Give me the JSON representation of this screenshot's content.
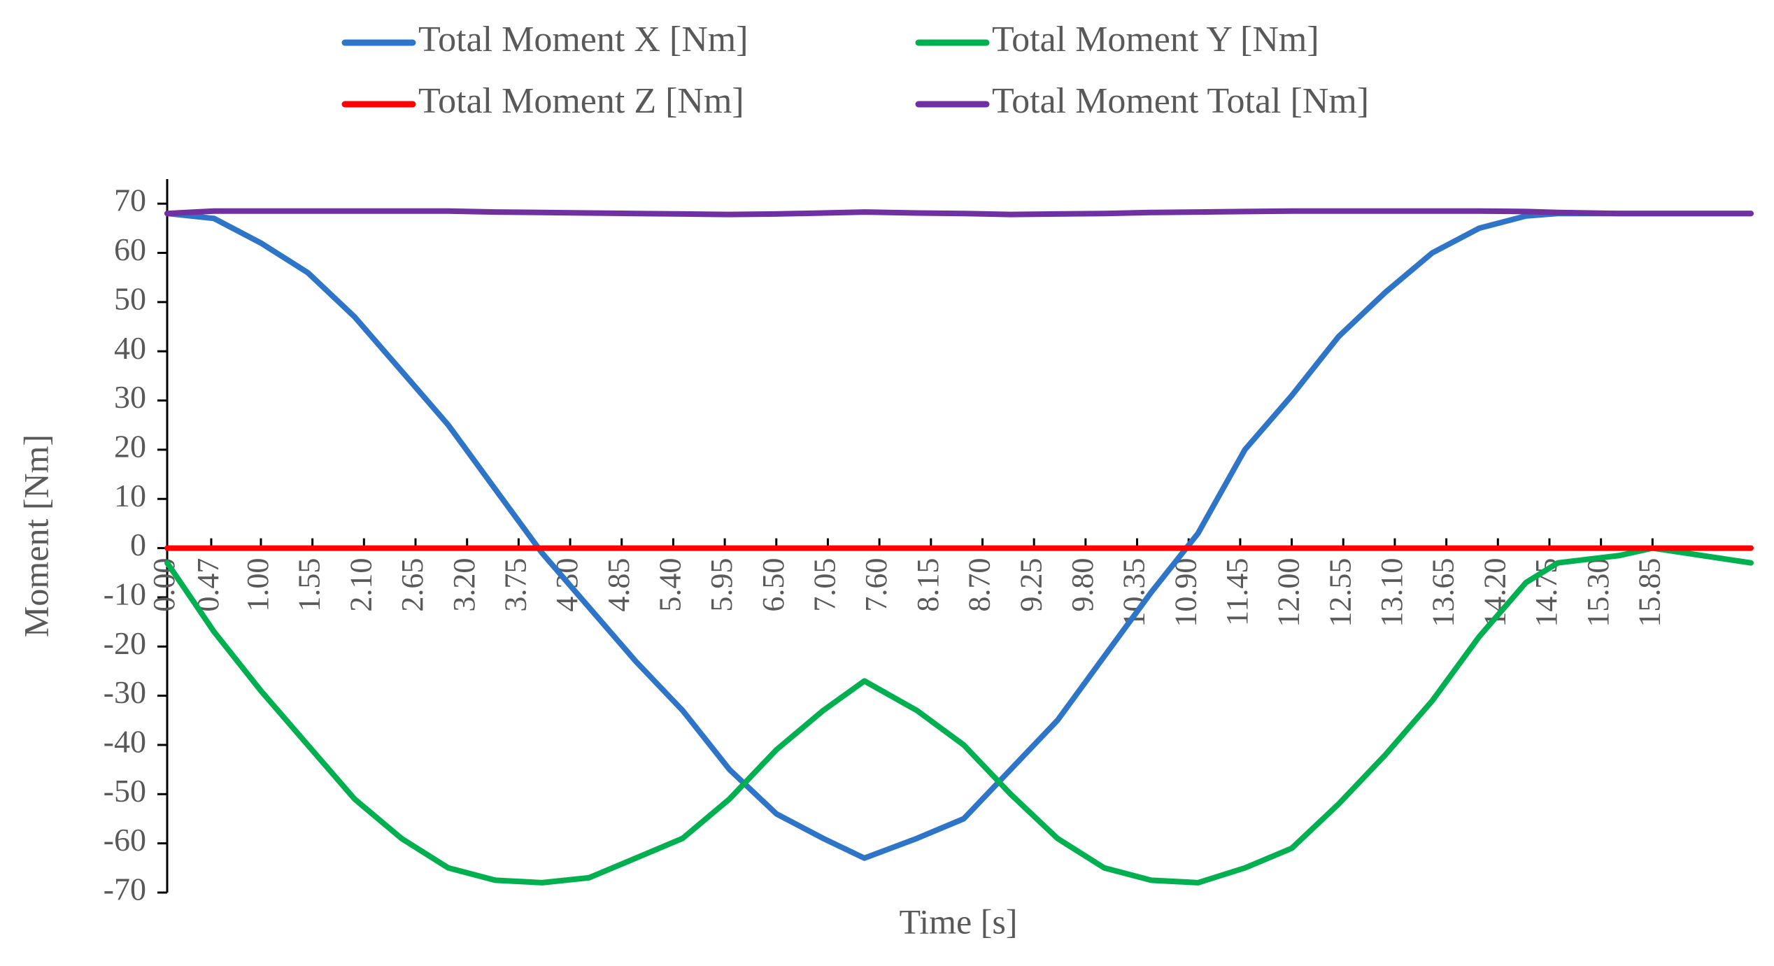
{
  "chart_data": {
    "type": "line",
    "x_label": "Time [s]",
    "y_label": "Moment [Nm]",
    "x": [
      0,
      0.5,
      1,
      1.5,
      2,
      2.5,
      3,
      3.5,
      4,
      4.5,
      5,
      5.5,
      6,
      6.5,
      7,
      7.44,
      8,
      8.5,
      9,
      9.5,
      10,
      10.5,
      11,
      11.5,
      12,
      12.5,
      13,
      13.5,
      14,
      14.5,
      14.84,
      15.5,
      15.85,
      16.9
    ],
    "series": [
      {
        "name": "Total Moment X [Nm]",
        "color": "#2e75c8",
        "values": [
          68,
          67,
          62,
          56,
          47,
          36,
          25,
          12,
          -1,
          -12,
          -23,
          -33,
          -45,
          -54,
          -59,
          -63,
          -59,
          -55,
          -45,
          -35,
          -22,
          -9,
          3,
          20,
          31,
          43,
          52,
          60,
          65,
          67.5,
          68,
          68,
          68,
          68
        ]
      },
      {
        "name": "Total Moment Y [Nm]",
        "color": "#00b050",
        "values": [
          -3,
          -17,
          -29,
          -40,
          -51,
          -59,
          -65,
          -67.5,
          -68,
          -67,
          -63,
          -59,
          -51,
          -41,
          -33,
          -27,
          -33,
          -40,
          -50,
          -59,
          -65,
          -67.5,
          -68,
          -65,
          -61,
          -52,
          -42,
          -31,
          -18,
          -7,
          -3,
          -1.5,
          0,
          -3
        ]
      },
      {
        "name": "Total Moment Z [Nm]",
        "color": "#ff0000",
        "values": [
          0,
          0,
          0,
          0,
          0,
          0,
          0,
          0,
          0,
          0,
          0,
          0,
          0,
          0,
          0,
          0,
          0,
          0,
          0,
          0,
          0,
          0,
          0,
          0,
          0,
          0,
          0,
          0,
          0,
          0,
          0,
          0,
          0,
          0
        ]
      },
      {
        "name": "Total Moment Total [Nm]",
        "color": "#7030a0",
        "values": [
          68,
          68.5,
          68.5,
          68.5,
          68.5,
          68.5,
          68.5,
          68.3,
          68.2,
          68.1,
          68,
          67.9,
          67.8,
          67.9,
          68.1,
          68.3,
          68.1,
          68,
          67.8,
          67.9,
          68,
          68.2,
          68.3,
          68.4,
          68.5,
          68.5,
          68.5,
          68.5,
          68.5,
          68.4,
          68.2,
          68,
          68,
          68
        ]
      }
    ],
    "xlim": [
      0,
      16.9
    ],
    "ylim": [
      -70,
      75
    ],
    "yticks": [
      -70,
      -60,
      -50,
      -40,
      -30,
      -20,
      -10,
      0,
      10,
      20,
      30,
      40,
      50,
      60,
      70
    ],
    "xticks": [
      {
        "value": 0,
        "label": "0.00"
      },
      {
        "value": 0.47,
        "label": "0.47"
      },
      {
        "value": 1,
        "label": "1.00"
      },
      {
        "value": 1.55,
        "label": "1.55"
      },
      {
        "value": 2.1,
        "label": "2.10"
      },
      {
        "value": 2.65,
        "label": "2.65"
      },
      {
        "value": 3.2,
        "label": "3.20"
      },
      {
        "value": 3.75,
        "label": "3.75"
      },
      {
        "value": 4.3,
        "label": "4.30"
      },
      {
        "value": 4.85,
        "label": "4.85"
      },
      {
        "value": 5.4,
        "label": "5.40"
      },
      {
        "value": 5.95,
        "label": "5.95"
      },
      {
        "value": 6.5,
        "label": "6.50"
      },
      {
        "value": 7.05,
        "label": "7.05"
      },
      {
        "value": 7.6,
        "label": "7.60"
      },
      {
        "value": 8.15,
        "label": "8.15"
      },
      {
        "value": 8.7,
        "label": "8.70"
      },
      {
        "value": 9.25,
        "label": "9.25"
      },
      {
        "value": 9.8,
        "label": "9.80"
      },
      {
        "value": 10.35,
        "label": "10.35"
      },
      {
        "value": 10.9,
        "label": "10.90"
      },
      {
        "value": 11.45,
        "label": "11.45"
      },
      {
        "value": 12,
        "label": "12.00"
      },
      {
        "value": 12.55,
        "label": "12.55"
      },
      {
        "value": 13.1,
        "label": "13.10"
      },
      {
        "value": 13.65,
        "label": "13.65"
      },
      {
        "value": 14.2,
        "label": "14.20"
      },
      {
        "value": 14.75,
        "label": "14.75"
      },
      {
        "value": 15.3,
        "label": "15.30"
      },
      {
        "value": 15.85,
        "label": "15.85"
      }
    ],
    "grid": false,
    "legend_position": "top"
  }
}
